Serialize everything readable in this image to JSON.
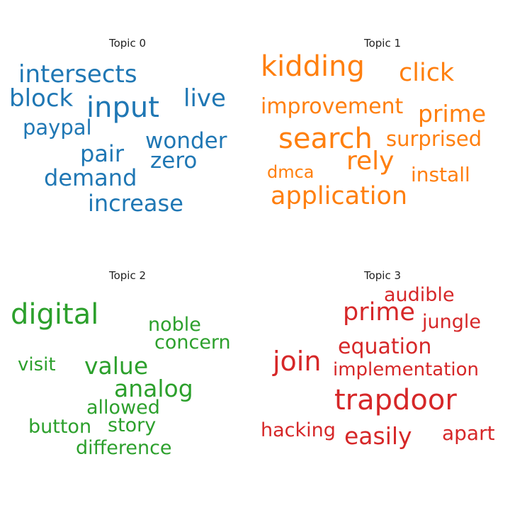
{
  "chart_data": [
    {
      "type": "wordcloud",
      "title": "Topic 0",
      "color": "#1f77b4",
      "words": [
        "intersects",
        "block",
        "input",
        "live",
        "paypal",
        "wonder",
        "pair",
        "zero",
        "demand",
        "increase"
      ]
    },
    {
      "type": "wordcloud",
      "title": "Topic 1",
      "color": "#ff7f0e",
      "words": [
        "kidding",
        "click",
        "improvement",
        "prime",
        "search",
        "surprised",
        "rely",
        "dmca",
        "install",
        "application"
      ]
    },
    {
      "type": "wordcloud",
      "title": "Topic 2",
      "color": "#2ca02c",
      "words": [
        "digital",
        "noble",
        "concern",
        "visit",
        "value",
        "analog",
        "allowed",
        "button",
        "story",
        "difference"
      ]
    },
    {
      "type": "wordcloud",
      "title": "Topic 3",
      "color": "#d62728",
      "words": [
        "audible",
        "prime",
        "jungle",
        "equation",
        "join",
        "implementation",
        "trapdoor",
        "hacking",
        "easily",
        "apart"
      ]
    }
  ]
}
